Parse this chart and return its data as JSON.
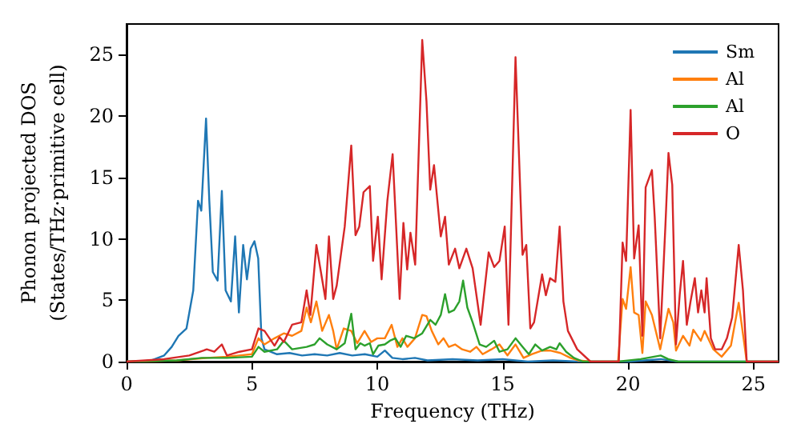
{
  "chart_data": {
    "type": "line",
    "xlabel": "Frequency (THz)",
    "ylabel": "Phonon projected DOS\n(States/THz·primitive cell)",
    "xlim": [
      0,
      26
    ],
    "xticks": [
      0,
      5,
      10,
      15,
      20,
      25
    ],
    "ylim": [
      0,
      27.5
    ],
    "yticks": [
      0,
      5,
      10,
      15,
      20,
      25
    ],
    "grid": false,
    "legend": "top right",
    "marker": "none",
    "line_style": "solid",
    "series": [
      {
        "name": "Sm",
        "color": "#1f77b4",
        "x": [
          0,
          0.5,
          1,
          1.5,
          1.8,
          2.07,
          2.39,
          2.66,
          2.85,
          2.98,
          3.17,
          3.3,
          3.44,
          3.63,
          3.8,
          3.95,
          4.16,
          4.33,
          4.48,
          4.65,
          4.8,
          4.95,
          5.1,
          5.25,
          5.38,
          5.5,
          6,
          6.5,
          7,
          7.5,
          8,
          8.5,
          9,
          9.5,
          10,
          10.3,
          10.6,
          11,
          11.5,
          12,
          13,
          14,
          15,
          16,
          17,
          18,
          20,
          21.3,
          22,
          25,
          26
        ],
        "values": [
          0,
          0,
          0.1,
          0.5,
          1.2,
          2.1,
          2.7,
          5.8,
          13.1,
          12.3,
          19.8,
          13.1,
          7.3,
          6.6,
          13.9,
          5.8,
          4.9,
          10.2,
          4.0,
          9.5,
          6.7,
          9.2,
          9.8,
          8.4,
          1.9,
          1.0,
          0.6,
          0.7,
          0.5,
          0.6,
          0.5,
          0.7,
          0.5,
          0.6,
          0.4,
          0.9,
          0.3,
          0.2,
          0.3,
          0.1,
          0.2,
          0.1,
          0.2,
          0,
          0.1,
          0,
          0,
          0.2,
          0,
          0,
          0
        ]
      },
      {
        "name": "Al",
        "color": "#ff7f0e",
        "x": [
          0,
          2,
          3.2,
          4,
          4.5,
          5,
          5.26,
          5.5,
          5.9,
          6.27,
          6.6,
          6.97,
          7.18,
          7.35,
          7.57,
          7.8,
          8.07,
          8.24,
          8.38,
          8.66,
          8.96,
          9.2,
          9.49,
          9.75,
          10.0,
          10.3,
          10.57,
          10.8,
          11.0,
          11.2,
          11.5,
          11.79,
          11.96,
          12.17,
          12.43,
          12.64,
          12.85,
          13.1,
          13.38,
          13.7,
          13.95,
          14.2,
          14.55,
          14.87,
          15.19,
          15.51,
          15.83,
          16.15,
          16.57,
          16.89,
          17.3,
          17.7,
          18.0,
          18.5,
          19.6,
          19.78,
          19.92,
          20.1,
          20.24,
          20.42,
          20.57,
          20.7,
          20.95,
          21.28,
          21.61,
          21.8,
          21.91,
          22.19,
          22.45,
          22.6,
          22.9,
          23.05,
          23.4,
          23.73,
          24.1,
          24.41,
          24.73,
          26
        ],
        "values": [
          0,
          0.1,
          0.3,
          0.4,
          0.5,
          0.6,
          1.9,
          1.4,
          1.9,
          2.3,
          2.1,
          2.5,
          4.4,
          3.2,
          4.9,
          2.5,
          3.8,
          2.5,
          1.0,
          2.7,
          2.5,
          1.5,
          2.5,
          1.6,
          1.9,
          1.9,
          3.0,
          1.2,
          1.9,
          1.2,
          1.9,
          3.8,
          3.7,
          2.5,
          1.4,
          1.9,
          1.2,
          1.4,
          1.0,
          0.8,
          1.2,
          0.6,
          1.0,
          1.4,
          0.5,
          1.4,
          0.3,
          0.6,
          0.9,
          0.9,
          0.7,
          0.3,
          0.1,
          0,
          0,
          5.1,
          4.3,
          7.7,
          4.0,
          3.8,
          0.7,
          4.9,
          3.8,
          1.0,
          4.3,
          3.2,
          0.9,
          2.1,
          1.3,
          2.6,
          1.7,
          2.5,
          1.0,
          0.4,
          1.3,
          4.8,
          0,
          0
        ]
      },
      {
        "name": "Al",
        "color": "#2ca02c",
        "x": [
          0,
          2,
          3,
          4,
          5,
          5.26,
          5.5,
          6.0,
          6.27,
          6.6,
          7.18,
          7.5,
          7.7,
          8.0,
          8.38,
          8.7,
          8.96,
          9.13,
          9.32,
          9.49,
          9.7,
          9.83,
          10.04,
          10.3,
          10.5,
          10.72,
          10.93,
          11.15,
          11.47,
          11.79,
          12.11,
          12.32,
          12.53,
          12.7,
          12.85,
          13.06,
          13.27,
          13.42,
          13.59,
          13.8,
          14.08,
          14.34,
          14.66,
          14.87,
          15.19,
          15.51,
          15.79,
          16.04,
          16.3,
          16.57,
          16.89,
          17.14,
          17.27,
          17.53,
          17.84,
          18.2,
          19.6,
          20.5,
          21.3,
          21.6,
          22,
          25,
          26
        ],
        "values": [
          0,
          0.1,
          0.3,
          0.3,
          0.4,
          1.2,
          0.8,
          1.0,
          1.7,
          1.0,
          1.2,
          1.4,
          1.9,
          1.4,
          1.0,
          1.5,
          3.9,
          1.0,
          1.5,
          1.3,
          1.5,
          0.6,
          1.3,
          1.4,
          1.7,
          1.9,
          1.2,
          2.1,
          1.9,
          2.3,
          3.4,
          3.0,
          3.8,
          5.5,
          4.0,
          4.2,
          4.9,
          6.6,
          4.4,
          3.2,
          1.4,
          1.2,
          1.7,
          0.8,
          1.0,
          1.9,
          1.2,
          0.6,
          1.4,
          0.9,
          1.2,
          1.0,
          1.5,
          0.8,
          0.3,
          0,
          0,
          0.2,
          0.5,
          0.2,
          0,
          0,
          0
        ]
      },
      {
        "name": "O",
        "color": "#d62728",
        "x": [
          0,
          1.5,
          2.5,
          3.2,
          3.5,
          3.8,
          4.0,
          4.5,
          5.0,
          5.26,
          5.5,
          5.9,
          6.1,
          6.27,
          6.6,
          6.97,
          7.18,
          7.33,
          7.57,
          7.93,
          8.07,
          8.24,
          8.38,
          8.7,
          8.96,
          9.13,
          9.28,
          9.45,
          9.7,
          9.83,
          10.02,
          10.17,
          10.4,
          10.61,
          10.89,
          11.04,
          11.19,
          11.32,
          11.51,
          11.79,
          11.96,
          12.11,
          12.26,
          12.53,
          12.7,
          12.85,
          13.1,
          13.27,
          13.55,
          13.8,
          14.12,
          14.44,
          14.66,
          14.87,
          15.08,
          15.23,
          15.51,
          15.79,
          15.94,
          16.1,
          16.25,
          16.57,
          16.72,
          16.89,
          17.1,
          17.27,
          17.42,
          17.6,
          17.97,
          18.5,
          19.63,
          19.78,
          19.92,
          20.1,
          20.24,
          20.42,
          20.57,
          20.7,
          20.95,
          21.06,
          21.28,
          21.49,
          21.61,
          21.76,
          21.91,
          22.06,
          22.19,
          22.34,
          22.49,
          22.66,
          22.79,
          22.92,
          23.05,
          23.13,
          23.3,
          23.47,
          23.73,
          23.94,
          24.15,
          24.41,
          24.58,
          24.73,
          26
        ],
        "values": [
          0,
          0.2,
          0.5,
          1.0,
          0.8,
          1.4,
          0.5,
          0.8,
          1.0,
          2.7,
          2.5,
          1.3,
          2.0,
          1.6,
          3.0,
          3.2,
          5.8,
          3.8,
          9.5,
          5.1,
          10.2,
          5.1,
          6.2,
          11.0,
          17.6,
          10.3,
          11.0,
          13.8,
          14.3,
          8.2,
          11.8,
          6.7,
          13.1,
          16.9,
          5.1,
          11.3,
          7.5,
          10.5,
          7.9,
          26.2,
          21.2,
          14.0,
          16.0,
          10.2,
          11.8,
          7.9,
          9.2,
          7.6,
          9.2,
          7.6,
          3.0,
          8.9,
          7.7,
          8.2,
          11.0,
          3.0,
          24.8,
          8.7,
          9.5,
          2.7,
          3.2,
          7.1,
          5.4,
          6.8,
          6.5,
          11.0,
          4.9,
          2.5,
          1.0,
          0,
          0,
          9.7,
          8.2,
          20.5,
          8.4,
          11.1,
          2.1,
          14.2,
          15.6,
          11.8,
          1.9,
          11.2,
          17.0,
          14.4,
          1.4,
          5.5,
          8.2,
          3.0,
          4.9,
          6.8,
          4.0,
          5.8,
          4.0,
          6.8,
          1.9,
          1.0,
          1.0,
          1.9,
          3.6,
          9.5,
          5.8,
          0,
          0
        ]
      }
    ]
  }
}
